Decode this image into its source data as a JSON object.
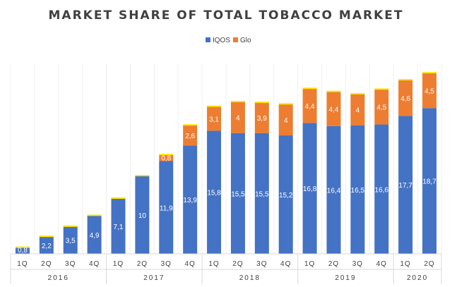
{
  "chart_data": {
    "type": "bar",
    "stacked": true,
    "title": "MARKET SHARE OF TOTAL TOBACCO MARKET",
    "legend": {
      "position": "top",
      "entries": [
        "IQOS",
        "Glo"
      ]
    },
    "colors": {
      "IQOS": "#4472C4",
      "Glo": "#ED7D31",
      "top_highlight": "#FFE500"
    },
    "grid": false,
    "categories": [
      "1Q",
      "2Q",
      "3Q",
      "4Q",
      "1Q",
      "2Q",
      "3Q",
      "4Q",
      "1Q",
      "2Q",
      "3Q",
      "4Q",
      "1Q",
      "2Q",
      "3Q",
      "4Q",
      "1Q",
      "2Q"
    ],
    "year_groups": [
      {
        "label": "2016",
        "span": 4
      },
      {
        "label": "2017",
        "span": 4
      },
      {
        "label": "2018",
        "span": 4
      },
      {
        "label": "2019",
        "span": 4
      },
      {
        "label": "2020",
        "span": 2
      }
    ],
    "series": [
      {
        "name": "IQOS",
        "values": [
          0.8,
          2.2,
          3.5,
          4.9,
          7.1,
          10,
          11.9,
          13.9,
          15.8,
          15.5,
          15.5,
          15.2,
          16.8,
          16.4,
          16.5,
          16.6,
          17.7,
          18.7
        ],
        "labels": [
          "0,8",
          "2,2",
          "3,5",
          "4,9",
          "7,1",
          "10",
          "11,9",
          "13,9",
          "15,8",
          "15,5",
          "15,5",
          "15,2",
          "16,8",
          "16,4",
          "16,5",
          "16,6",
          "17,7",
          "18,7"
        ]
      },
      {
        "name": "Glo",
        "values": [
          0,
          0,
          0,
          0,
          0,
          0,
          0.8,
          2.6,
          3.1,
          4,
          3.9,
          4,
          4.4,
          4.4,
          4,
          4.5,
          4.6,
          4.5
        ],
        "labels": [
          "",
          "",
          "",
          "",
          "",
          "",
          "0,8",
          "2,6",
          "3,1",
          "4",
          "3,9",
          "4",
          "4,4",
          "4,4",
          "4",
          "4,5",
          "4,6",
          "4,5"
        ]
      }
    ],
    "ylim": [
      0,
      25
    ]
  }
}
